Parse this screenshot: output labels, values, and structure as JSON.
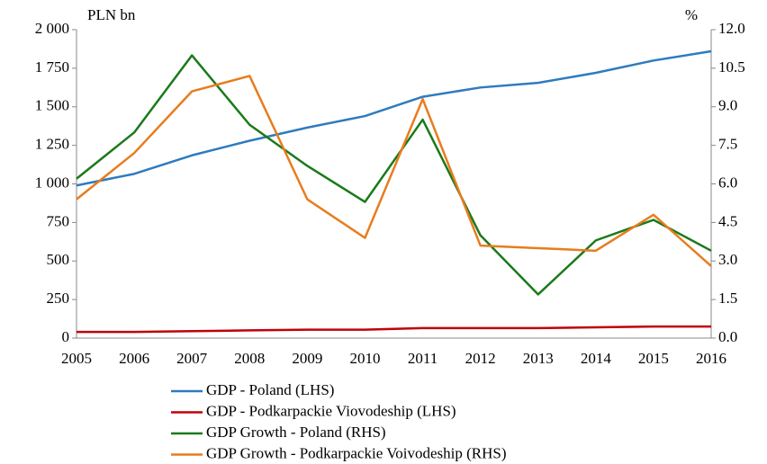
{
  "chart_data": {
    "type": "line",
    "ylabel": "PLN bn",
    "y2label": "%",
    "categories": [
      "2005",
      "2006",
      "2007",
      "2008",
      "2009",
      "2010",
      "2011",
      "2012",
      "2013",
      "2014",
      "2015",
      "2016"
    ],
    "ylim": [
      0,
      2000
    ],
    "yticks": [
      0,
      250,
      500,
      750,
      {
        "value": 1000,
        "label": "1 000"
      },
      {
        "value": 1250,
        "label": "1 250"
      },
      {
        "value": 1500,
        "label": "1 500"
      },
      {
        "value": 1750,
        "label": "1 750"
      },
      {
        "value": 2000,
        "label": "2 000"
      }
    ],
    "y2lim": [
      0,
      12
    ],
    "y2ticks": [
      {
        "value": 0,
        "label": "0.0"
      },
      1.5,
      {
        "value": 3,
        "label": "3.0"
      },
      4.5,
      {
        "value": 6,
        "label": "6.0"
      },
      7.5,
      {
        "value": 9,
        "label": "9.0"
      },
      10.5,
      {
        "value": 12,
        "label": "12.0"
      }
    ],
    "grid": false,
    "legend": "bottom",
    "series": [
      {
        "name": "GDP - Poland (LHS)",
        "color": "#2e7bbf",
        "values": [
          990,
          1065,
          1185,
          1280,
          1365,
          1440,
          1565,
          1625,
          1655,
          1720,
          1800,
          1860
        ]
      },
      {
        "name": "GDP - Podkarpackie Viovodeship (LHS)",
        "color": "#c0000a",
        "values": [
          40,
          40,
          45,
          50,
          55,
          55,
          65,
          65,
          65,
          70,
          75,
          75
        ]
      },
      {
        "name": "GDP Growth - Poland (RHS)",
        "color": "#1a7a1a",
        "axis": "y2",
        "values": [
          6.2,
          8.0,
          11.0,
          8.3,
          6.7,
          5.3,
          8.5,
          4.0,
          1.7,
          3.8,
          4.6,
          3.4
        ]
      },
      {
        "name": "GDP Growth - Podkarpackie Voivodeship (RHS)",
        "color": "#e87c1e",
        "axis": "y2",
        "values": [
          5.4,
          7.2,
          9.6,
          10.2,
          5.4,
          3.9,
          9.3,
          3.6,
          3.5,
          3.4,
          4.8,
          2.8
        ]
      }
    ]
  }
}
